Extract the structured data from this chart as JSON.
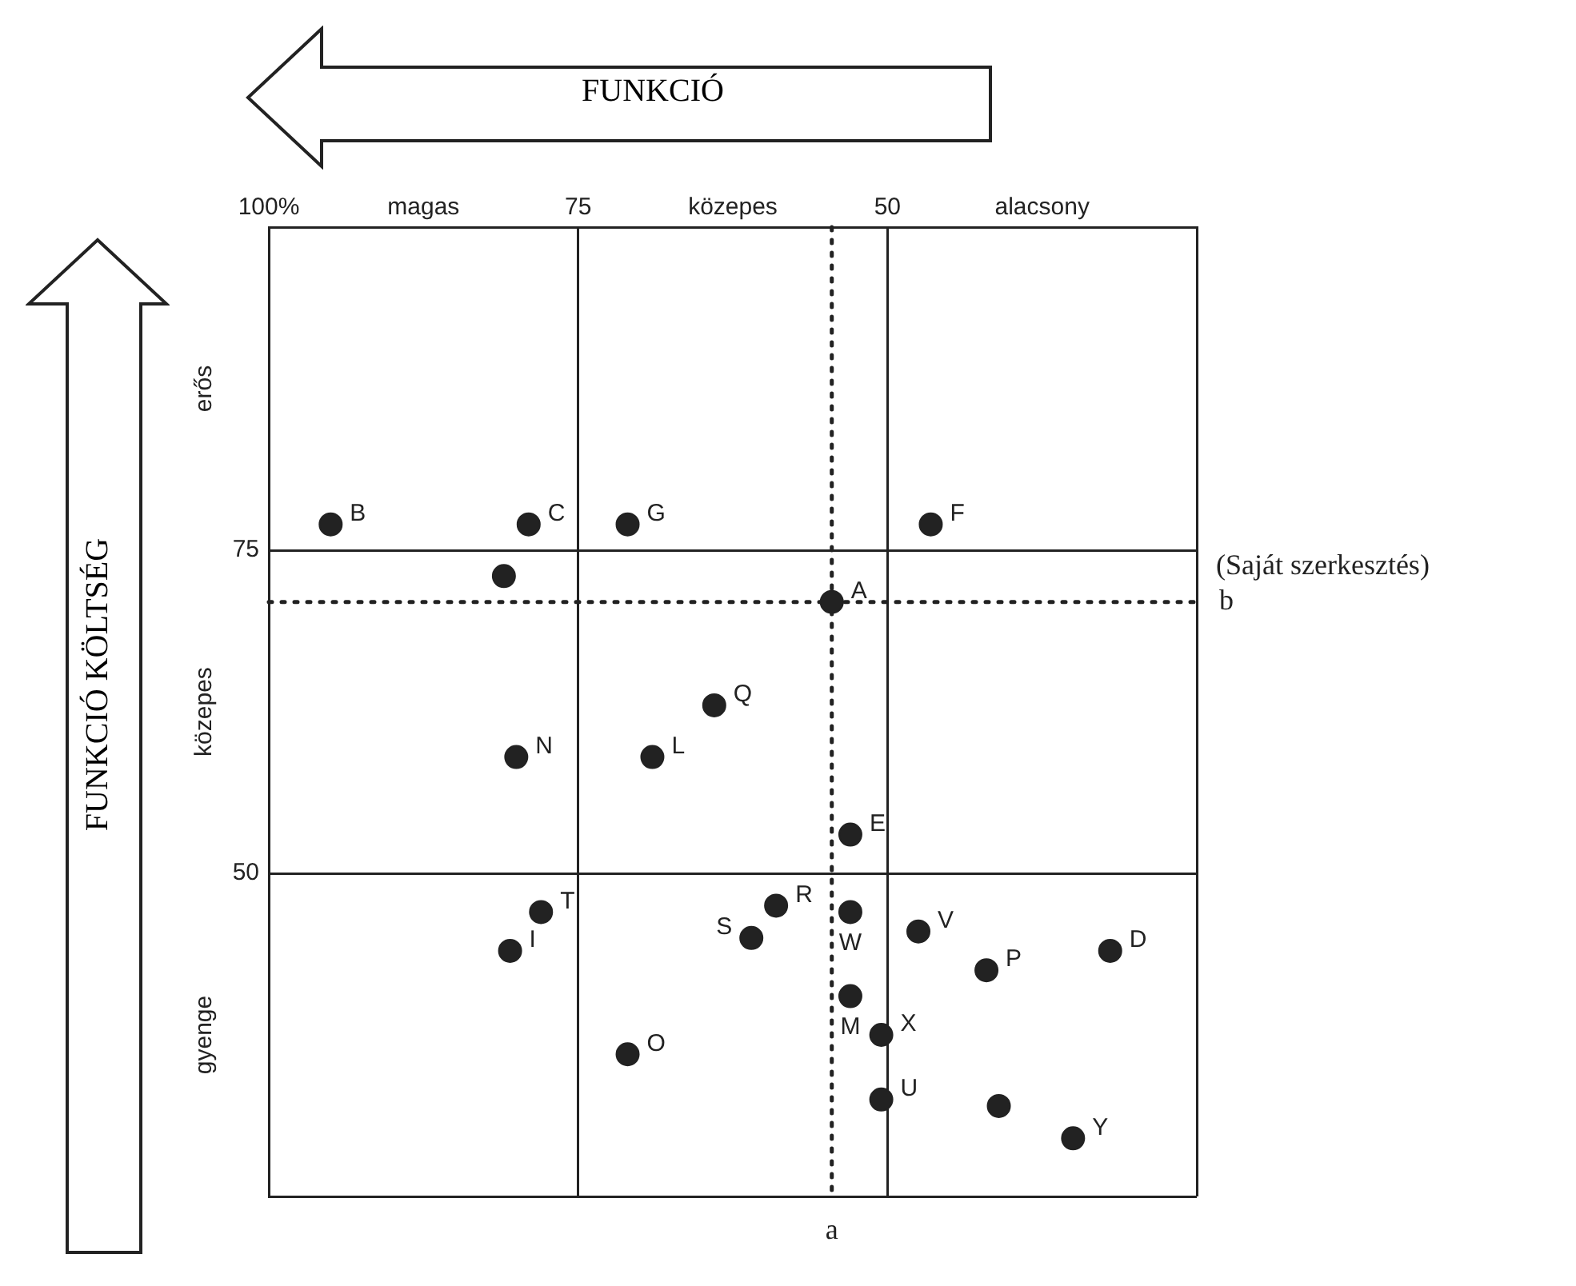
{
  "chart_data": {
    "type": "scatter",
    "xlabel": "FUNKCIÓ",
    "ylabel": "FUNKCIÓ KÖLTSÉG",
    "xlim": [
      100,
      25
    ],
    "xticks": [
      {
        "value": 100,
        "label": "100%"
      },
      75,
      50,
      {
        "value": 25,
        "label": null
      }
    ],
    "ylim": [
      25,
      100
    ],
    "yticks": [
      {
        "value": 25,
        "label": null
      },
      50,
      75,
      {
        "value": 100,
        "label": null
      }
    ],
    "grid": true,
    "legend": false,
    "marker": "circle",
    "ref_lines": [
      {
        "axis": "x",
        "value": 54.5,
        "label": "a",
        "line_style": "dotted"
      },
      {
        "axis": "y",
        "value": 71,
        "label": "b",
        "line_style": "dotted"
      }
    ],
    "annotations": [
      "magas",
      "közepes",
      "alacsony",
      "erős",
      "közepes",
      "gyenge",
      "(Saját szerkesztés)"
    ],
    "series": [
      {
        "name": "B",
        "color": "#222222",
        "x": [
          95
        ],
        "values": [
          77
        ]
      },
      {
        "name": "C",
        "color": "#222222",
        "x": [
          79
        ],
        "values": [
          77
        ]
      },
      {
        "name": "G",
        "color": "#222222",
        "x": [
          71
        ],
        "values": [
          77
        ]
      },
      {
        "name": "F",
        "color": "#222222",
        "x": [
          46.5
        ],
        "values": [
          77
        ]
      },
      {
        "color": "#222222",
        "x": [
          81
        ],
        "values": [
          73
        ]
      },
      {
        "name": "A",
        "color": "#222222",
        "x": [
          54.5
        ],
        "values": [
          71
        ]
      },
      {
        "name": "Q",
        "color": "#222222",
        "x": [
          64
        ],
        "values": [
          63
        ]
      },
      {
        "name": "N",
        "color": "#222222",
        "x": [
          80
        ],
        "values": [
          59
        ]
      },
      {
        "name": "L",
        "color": "#222222",
        "x": [
          69
        ],
        "values": [
          59
        ]
      },
      {
        "name": "E",
        "color": "#222222",
        "x": [
          53
        ],
        "values": [
          53
        ]
      },
      {
        "name": "R",
        "color": "#222222",
        "x": [
          59
        ],
        "values": [
          47.5
        ]
      },
      {
        "name": "W",
        "color": "#222222",
        "x": [
          53
        ],
        "values": [
          47
        ]
      },
      {
        "name": "T",
        "color": "#222222",
        "x": [
          78
        ],
        "values": [
          47
        ]
      },
      {
        "name": "V",
        "color": "#222222",
        "x": [
          47.5
        ],
        "values": [
          45.5
        ]
      },
      {
        "name": "I",
        "color": "#222222",
        "x": [
          80.5
        ],
        "values": [
          44
        ]
      },
      {
        "name": "S",
        "color": "#222222",
        "x": [
          61
        ],
        "values": [
          45
        ]
      },
      {
        "name": "D",
        "color": "#222222",
        "x": [
          32
        ],
        "values": [
          44
        ]
      },
      {
        "name": "P",
        "color": "#222222",
        "x": [
          42
        ],
        "values": [
          42.5
        ]
      },
      {
        "name": "M",
        "color": "#222222",
        "x": [
          53
        ],
        "values": [
          40.5
        ]
      },
      {
        "name": "X",
        "color": "#222222",
        "x": [
          50.5
        ],
        "values": [
          37.5
        ]
      },
      {
        "name": "O",
        "color": "#222222",
        "x": [
          71
        ],
        "values": [
          36
        ]
      },
      {
        "name": "U",
        "color": "#222222",
        "x": [
          50.5
        ],
        "values": [
          32.5
        ]
      },
      {
        "color": "#222222",
        "x": [
          41
        ],
        "values": [
          32
        ]
      },
      {
        "name": "Y",
        "color": "#222222",
        "x": [
          35
        ],
        "values": [
          29.5
        ]
      }
    ]
  }
}
